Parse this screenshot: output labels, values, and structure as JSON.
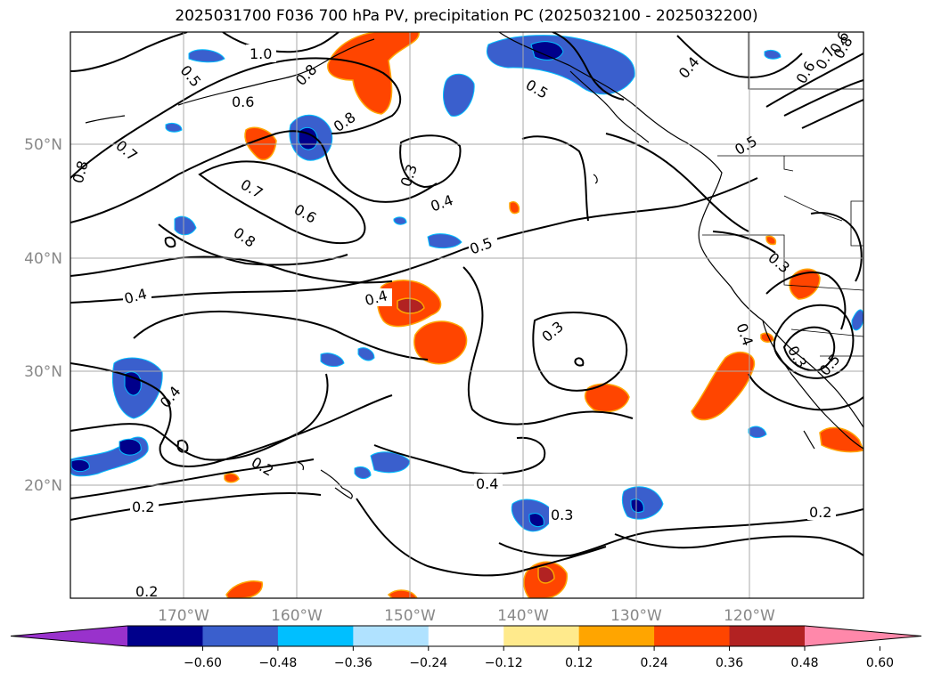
{
  "title": "2025031700 F036 700 hPa PV, precipitation PC (2025032100 - 2025032200)",
  "map": {
    "lon_labels": [
      "170°W",
      "160°W",
      "150°W",
      "140°W",
      "130°W",
      "120°W"
    ],
    "lat_labels": [
      "50°N",
      "40°N",
      "30°N",
      "20°N"
    ],
    "contour_labels": [
      "1.0",
      "0.5",
      "0.6",
      "0.8",
      "0.7",
      "0.8",
      "0.8",
      "0.5",
      "0.3",
      "0.7",
      "0.6",
      "0.8",
      "0.4",
      "0.5",
      "0.4",
      "0.4",
      "0.3",
      "0.4",
      "0.2",
      "0.2",
      "0.4",
      "0.3",
      "0.2",
      "0.2",
      "0.4",
      "0.6",
      "0.7",
      "0.8",
      "0.6",
      "0.5",
      "0.3",
      "0.3",
      "0.5",
      "0.4"
    ]
  },
  "colorbar": {
    "ticks": [
      "−0.60",
      "−0.48",
      "−0.36",
      "−0.24",
      "−0.12",
      "0.12",
      "0.24",
      "0.36",
      "0.48",
      "0.60"
    ],
    "colors": [
      "#9932cc",
      "#00008b",
      "#3a5fcd",
      "#00bfff",
      "#b0e2ff",
      "#ffffff",
      "#ffea8c",
      "#ffa500",
      "#ff4500",
      "#b22222",
      "#ff88aa"
    ]
  }
}
